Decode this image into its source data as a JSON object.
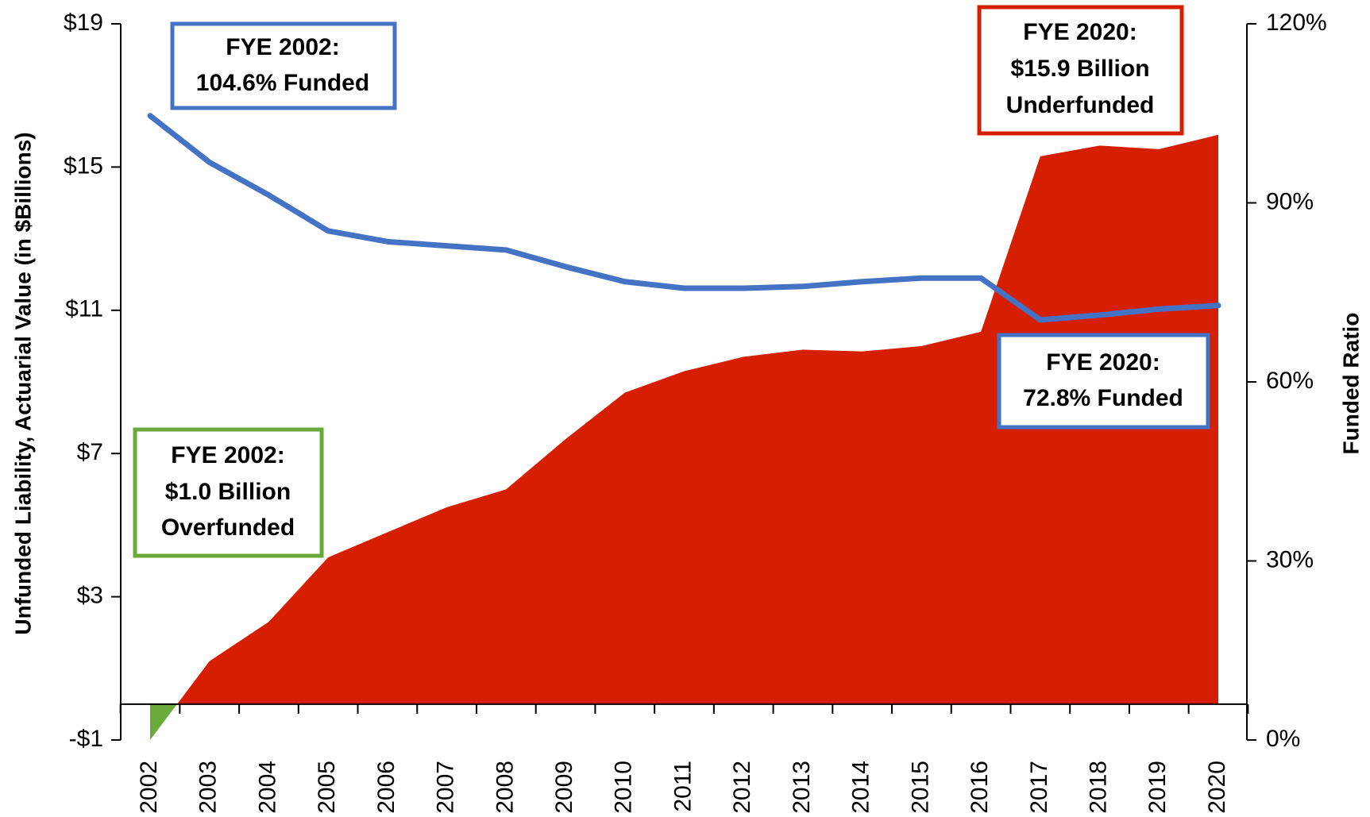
{
  "chart_data": {
    "type": "area_line",
    "y_label": "Unfunded Liability, Actuarial Value (in $Billions)",
    "y2_label": "Funded Ratio",
    "categories": [
      "2002",
      "2003",
      "2004",
      "2005",
      "2006",
      "2007",
      "2008",
      "2009",
      "2010",
      "2011",
      "2012",
      "2013",
      "2014",
      "2015",
      "2016",
      "2017",
      "2018",
      "2019",
      "2020"
    ],
    "series": [
      {
        "type": "area",
        "color": "#d61e00",
        "negative_color": "#6aaa3a",
        "values": [
          -1.0,
          1.2,
          2.3,
          4.1,
          4.8,
          5.5,
          6.0,
          7.4,
          8.7,
          9.3,
          9.7,
          9.9,
          9.85,
          10.0,
          10.4,
          15.3,
          15.6,
          15.5,
          15.9
        ]
      },
      {
        "type": "line",
        "axis": "y2",
        "color": "#4472c4",
        "values": [
          104.6,
          96.8,
          91.3,
          85.3,
          83.5,
          82.8,
          82.1,
          79.3,
          76.8,
          75.7,
          75.7,
          76.0,
          76.8,
          77.4,
          77.4,
          70.4,
          71.2,
          72.2,
          72.8
        ]
      }
    ],
    "ylim": [
      -1,
      19
    ],
    "yticks": [
      {
        "value": -1,
        "label": "-$1"
      },
      {
        "value": 3,
        "label": "$3"
      },
      {
        "value": 7,
        "label": "$7"
      },
      {
        "value": 11,
        "label": "$11"
      },
      {
        "value": 15,
        "label": "$15"
      },
      {
        "value": 19,
        "label": "$19"
      }
    ],
    "y2lim": [
      0,
      120
    ],
    "y2ticks": [
      {
        "value": 0,
        "label": "0%"
      },
      {
        "value": 30,
        "label": "30%"
      },
      {
        "value": 60,
        "label": "60%"
      },
      {
        "value": 90,
        "label": "90%"
      },
      {
        "value": 120,
        "label": "120%"
      }
    ],
    "annotations": [
      {
        "color": "#4472c4",
        "lines": [
          "FYE 2002:",
          "104.6% Funded"
        ]
      },
      {
        "color": "#d61e00",
        "lines": [
          "FYE 2020:",
          "$15.9 Billion",
          "Underfunded"
        ]
      },
      {
        "color": "#4472c4",
        "lines": [
          "FYE 2020:",
          "72.8% Funded"
        ]
      },
      {
        "color": "#6aaa3a",
        "lines": [
          "FYE 2002:",
          "$1.0 Billion",
          "Overfunded"
        ]
      }
    ]
  }
}
